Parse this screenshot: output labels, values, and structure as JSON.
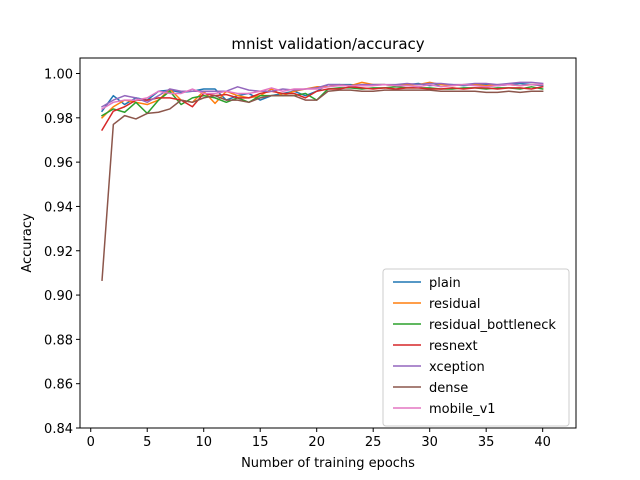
{
  "chart_data": {
    "type": "line",
    "title": "mnist validation/accuracy",
    "xlabel": "Number of training epochs",
    "ylabel": "Accuracy",
    "xlim": [
      -0.95,
      42.95
    ],
    "ylim": [
      0.84,
      1.007
    ],
    "xticks": [
      0,
      5,
      10,
      15,
      20,
      25,
      30,
      35,
      40
    ],
    "yticks": [
      0.84,
      0.86,
      0.88,
      0.9,
      0.92,
      0.94,
      0.96,
      0.98,
      1.0
    ],
    "ytick_labels": [
      "0.84",
      "0.86",
      "0.88",
      "0.90",
      "0.92",
      "0.94",
      "0.96",
      "0.98",
      "1.00"
    ],
    "grid": false,
    "legend": "lower-right",
    "x": [
      1,
      2,
      3,
      4,
      5,
      6,
      7,
      8,
      9,
      10,
      11,
      12,
      13,
      14,
      15,
      16,
      17,
      18,
      19,
      20,
      21,
      22,
      23,
      24,
      25,
      26,
      27,
      28,
      29,
      30,
      31,
      32,
      33,
      34,
      35,
      36,
      37,
      38,
      39,
      40
    ],
    "series": [
      {
        "name": "plain",
        "color": "#1f77b4",
        "values": [
          0.983,
          0.99,
          0.986,
          0.989,
          0.988,
          0.992,
          0.9925,
          0.9915,
          0.992,
          0.993,
          0.993,
          0.988,
          0.99,
          0.991,
          0.988,
          0.99,
          0.991,
          0.992,
          0.99,
          0.992,
          0.995,
          0.995,
          0.995,
          0.9945,
          0.995,
          0.995,
          0.9945,
          0.995,
          0.9955,
          0.9945,
          0.995,
          0.995,
          0.9945,
          0.995,
          0.995,
          0.9945,
          0.995,
          0.9955,
          0.995,
          0.9945
        ]
      },
      {
        "name": "residual",
        "color": "#ff7f0e",
        "values": [
          0.98,
          0.985,
          0.988,
          0.987,
          0.986,
          0.988,
          0.993,
          0.988,
          0.987,
          0.992,
          0.9865,
          0.992,
          0.99,
          0.989,
          0.99,
          0.993,
          0.99,
          0.992,
          0.993,
          0.994,
          0.994,
          0.995,
          0.9945,
          0.996,
          0.995,
          0.995,
          0.9945,
          0.995,
          0.995,
          0.996,
          0.995,
          0.9945,
          0.995,
          0.995,
          0.9945,
          0.995,
          0.995,
          0.9945,
          0.995,
          0.995
        ]
      },
      {
        "name": "residual_bottleneck",
        "color": "#2ca02c",
        "values": [
          0.981,
          0.984,
          0.9825,
          0.987,
          0.982,
          0.988,
          0.992,
          0.986,
          0.989,
          0.99,
          0.989,
          0.987,
          0.989,
          0.987,
          0.99,
          0.99,
          0.99,
          0.99,
          0.991,
          0.988,
          0.993,
          0.9935,
          0.9935,
          0.993,
          0.9935,
          0.9935,
          0.994,
          0.9935,
          0.9935,
          0.9935,
          0.993,
          0.993,
          0.9935,
          0.9935,
          0.993,
          0.9935,
          0.9935,
          0.993,
          0.994,
          0.993
        ]
      },
      {
        "name": "resnext",
        "color": "#d62728",
        "values": [
          0.9745,
          0.983,
          0.985,
          0.988,
          0.988,
          0.989,
          0.989,
          0.988,
          0.985,
          0.991,
          0.99,
          0.9905,
          0.989,
          0.989,
          0.991,
          0.992,
          0.991,
          0.991,
          0.989,
          0.992,
          0.993,
          0.993,
          0.994,
          0.9935,
          0.993,
          0.9935,
          0.993,
          0.9935,
          0.9935,
          0.993,
          0.993,
          0.9935,
          0.993,
          0.9935,
          0.9935,
          0.993,
          0.9935,
          0.9935,
          0.993,
          0.994
        ]
      },
      {
        "name": "xception",
        "color": "#9467bd",
        "values": [
          0.985,
          0.988,
          0.99,
          0.989,
          0.987,
          0.99,
          0.993,
          0.992,
          0.992,
          0.992,
          0.992,
          0.992,
          0.994,
          0.9925,
          0.992,
          0.992,
          0.993,
          0.9925,
          0.993,
          0.9935,
          0.995,
          0.995,
          0.9945,
          0.995,
          0.995,
          0.995,
          0.995,
          0.9955,
          0.995,
          0.9955,
          0.9955,
          0.995,
          0.995,
          0.9955,
          0.9955,
          0.995,
          0.9955,
          0.996,
          0.996,
          0.9955
        ]
      },
      {
        "name": "dense",
        "color": "#8c564b",
        "values": [
          0.9067,
          0.977,
          0.981,
          0.9795,
          0.982,
          0.9825,
          0.984,
          0.988,
          0.987,
          0.989,
          0.99,
          0.988,
          0.988,
          0.987,
          0.989,
          0.99,
          0.99,
          0.99,
          0.988,
          0.988,
          0.992,
          0.9925,
          0.9925,
          0.992,
          0.992,
          0.9925,
          0.9925,
          0.9925,
          0.9925,
          0.9925,
          0.992,
          0.992,
          0.992,
          0.992,
          0.9915,
          0.9915,
          0.992,
          0.9915,
          0.992,
          0.992
        ]
      },
      {
        "name": "mobile_v1",
        "color": "#e377c2",
        "values": [
          0.984,
          0.987,
          0.988,
          0.988,
          0.989,
          0.992,
          0.991,
          0.991,
          0.993,
          0.991,
          0.991,
          0.992,
          0.991,
          0.991,
          0.992,
          0.9935,
          0.992,
          0.993,
          0.993,
          0.993,
          0.994,
          0.9945,
          0.9945,
          0.9945,
          0.9945,
          0.995,
          0.9945,
          0.9945,
          0.994,
          0.995,
          0.994,
          0.9945,
          0.995,
          0.9945,
          0.994,
          0.9945,
          0.995,
          0.9945,
          0.995,
          0.995
        ]
      }
    ]
  }
}
